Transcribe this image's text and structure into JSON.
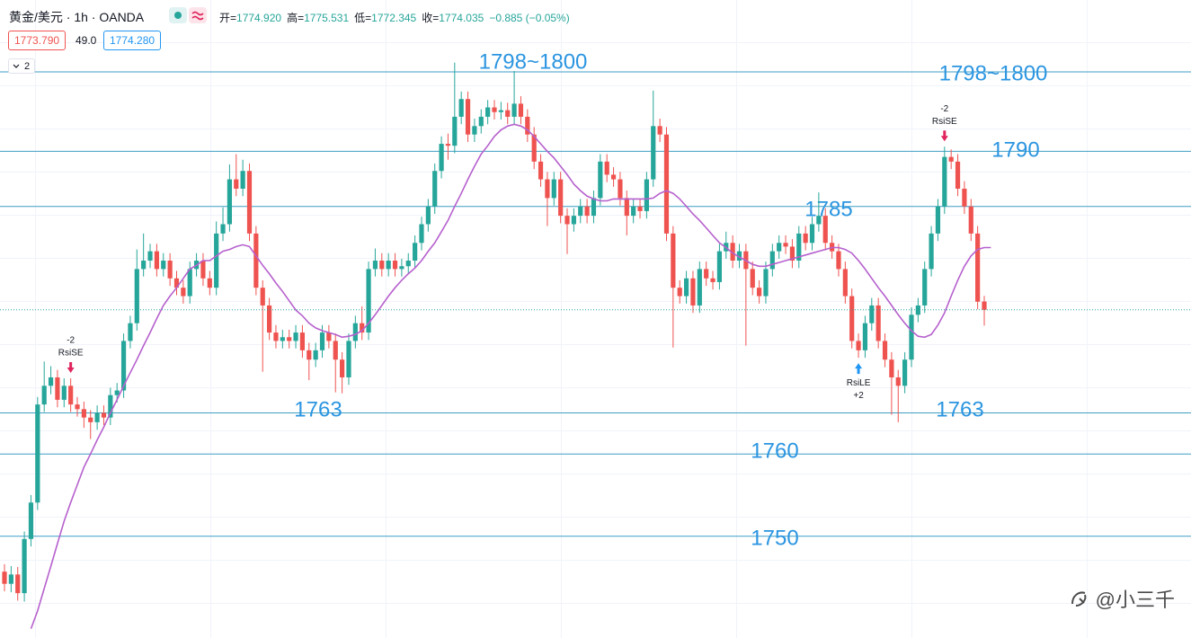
{
  "header": {
    "title": "黄金/美元 · 1h · OANDA",
    "ohlc": [
      {
        "label": "开=",
        "value": "1774.920"
      },
      {
        "label": "高=",
        "value": "1775.531"
      },
      {
        "label": "低=",
        "value": "1772.345"
      },
      {
        "label": "收=",
        "value": "1774.035"
      }
    ],
    "change": "−0.885 (−0.05%)",
    "bid": "1773.790",
    "spread": "49.0",
    "ask": "1774.280",
    "collapsed_count": "2"
  },
  "watermark": "@小三千",
  "chart_data": {
    "type": "candlestick",
    "ylim": [
      1738.9,
      1807.2
    ],
    "up_color": "#26a69a",
    "down_color": "#ef5350",
    "candles": [
      [
        1746.0,
        1746.8,
        1743.9,
        1744.7
      ],
      [
        1744.7,
        1746.6,
        1743.8,
        1745.7
      ],
      [
        1745.7,
        1746.5,
        1742.9,
        1743.7
      ],
      [
        1743.7,
        1750.3,
        1742.8,
        1749.5
      ],
      [
        1749.5,
        1754.2,
        1748.7,
        1753.4
      ],
      [
        1753.4,
        1764.7,
        1752.6,
        1763.9
      ],
      [
        1763.9,
        1768.5,
        1763.1,
        1765.9
      ],
      [
        1765.9,
        1768.0,
        1765.0,
        1766.8
      ],
      [
        1766.8,
        1767.6,
        1763.6,
        1764.4
      ],
      [
        1764.4,
        1766.7,
        1763.6,
        1765.9
      ],
      [
        1765.9,
        1766.7,
        1763.1,
        1763.9
      ],
      [
        1763.9,
        1764.7,
        1762.6,
        1763.4
      ],
      [
        1763.4,
        1764.2,
        1761.4,
        1762.5
      ],
      [
        1762.5,
        1763.3,
        1760.2,
        1762.0
      ],
      [
        1762.0,
        1763.8,
        1761.2,
        1763.0
      ],
      [
        1763.0,
        1763.8,
        1761.7,
        1762.5
      ],
      [
        1762.5,
        1765.7,
        1761.7,
        1764.9
      ],
      [
        1764.9,
        1766.2,
        1764.1,
        1765.4
      ],
      [
        1765.4,
        1771.5,
        1764.6,
        1770.7
      ],
      [
        1770.7,
        1773.4,
        1769.9,
        1772.6
      ],
      [
        1772.6,
        1780.5,
        1771.8,
        1778.4
      ],
      [
        1778.4,
        1782.2,
        1777.6,
        1779.3
      ],
      [
        1779.3,
        1781.1,
        1778.5,
        1780.3
      ],
      [
        1780.3,
        1781.1,
        1777.6,
        1778.4
      ],
      [
        1778.4,
        1780.1,
        1777.6,
        1779.3
      ],
      [
        1779.3,
        1780.1,
        1776.6,
        1777.4
      ],
      [
        1777.4,
        1778.2,
        1775.6,
        1776.4
      ],
      [
        1776.4,
        1777.2,
        1774.7,
        1775.5
      ],
      [
        1775.5,
        1779.2,
        1774.7,
        1778.4
      ],
      [
        1778.4,
        1780.1,
        1777.6,
        1779.3
      ],
      [
        1779.3,
        1780.1,
        1776.6,
        1777.4
      ],
      [
        1777.4,
        1778.2,
        1775.6,
        1776.4
      ],
      [
        1776.4,
        1783.5,
        1775.6,
        1782.2
      ],
      [
        1782.2,
        1785.0,
        1781.4,
        1783.2
      ],
      [
        1783.2,
        1789.6,
        1782.4,
        1788.0
      ],
      [
        1788.0,
        1790.7,
        1786.2,
        1787.0
      ],
      [
        1787.0,
        1790.1,
        1786.2,
        1788.9
      ],
      [
        1788.9,
        1789.7,
        1781.4,
        1782.2
      ],
      [
        1782.2,
        1783.0,
        1775.6,
        1776.4
      ],
      [
        1776.4,
        1777.2,
        1767.4,
        1774.5
      ],
      [
        1774.5,
        1775.3,
        1770.8,
        1771.6
      ],
      [
        1771.6,
        1772.4,
        1769.9,
        1770.7
      ],
      [
        1770.7,
        1771.9,
        1769.9,
        1771.1
      ],
      [
        1771.1,
        1771.9,
        1769.9,
        1770.7
      ],
      [
        1770.7,
        1772.4,
        1769.9,
        1771.6
      ],
      [
        1771.6,
        1772.4,
        1768.9,
        1769.7
      ],
      [
        1769.7,
        1770.5,
        1766.5,
        1768.7
      ],
      [
        1768.7,
        1770.5,
        1767.9,
        1769.7
      ],
      [
        1769.7,
        1772.4,
        1768.9,
        1771.6
      ],
      [
        1771.6,
        1772.4,
        1769.9,
        1770.7
      ],
      [
        1770.7,
        1771.5,
        1765.2,
        1768.7
      ],
      [
        1768.7,
        1769.5,
        1765.1,
        1766.8
      ],
      [
        1766.8,
        1771.5,
        1766.0,
        1770.7
      ],
      [
        1770.7,
        1773.4,
        1769.9,
        1772.6
      ],
      [
        1772.6,
        1774.4,
        1770.8,
        1771.6
      ],
      [
        1771.6,
        1779.2,
        1770.8,
        1778.4
      ],
      [
        1778.4,
        1780.6,
        1777.6,
        1779.3
      ],
      [
        1779.3,
        1780.1,
        1777.6,
        1778.4
      ],
      [
        1778.4,
        1780.1,
        1777.6,
        1779.3
      ],
      [
        1779.3,
        1780.1,
        1777.6,
        1778.4
      ],
      [
        1778.4,
        1779.5,
        1777.6,
        1778.7
      ],
      [
        1778.7,
        1780.1,
        1777.9,
        1779.3
      ],
      [
        1779.3,
        1782.0,
        1778.5,
        1781.2
      ],
      [
        1781.2,
        1784.0,
        1780.4,
        1783.2
      ],
      [
        1783.2,
        1785.9,
        1782.4,
        1785.1
      ],
      [
        1785.1,
        1789.7,
        1784.3,
        1788.9
      ],
      [
        1788.9,
        1792.6,
        1788.1,
        1791.8
      ],
      [
        1791.8,
        1792.9,
        1790.1,
        1791.6
      ],
      [
        1791.6,
        1800.5,
        1790.8,
        1794.7
      ],
      [
        1794.7,
        1797.4,
        1793.9,
        1796.6
      ],
      [
        1796.6,
        1797.4,
        1792.0,
        1792.8
      ],
      [
        1792.8,
        1794.5,
        1792.0,
        1793.7
      ],
      [
        1793.7,
        1795.5,
        1792.9,
        1794.7
      ],
      [
        1794.7,
        1796.5,
        1793.9,
        1795.7
      ],
      [
        1795.7,
        1796.5,
        1794.4,
        1795.2
      ],
      [
        1795.2,
        1796.3,
        1794.4,
        1795.4
      ],
      [
        1795.4,
        1796.2,
        1793.9,
        1794.7
      ],
      [
        1794.7,
        1799.6,
        1793.9,
        1796.1
      ],
      [
        1796.1,
        1796.9,
        1793.9,
        1794.7
      ],
      [
        1794.7,
        1795.5,
        1792.0,
        1792.8
      ],
      [
        1792.8,
        1793.6,
        1789.1,
        1789.9
      ],
      [
        1789.9,
        1790.7,
        1787.2,
        1788.0
      ],
      [
        1788.0,
        1788.8,
        1783.0,
        1786.0
      ],
      [
        1786.0,
        1788.8,
        1785.2,
        1788.0
      ],
      [
        1788.0,
        1788.8,
        1783.3,
        1784.1
      ],
      [
        1784.1,
        1784.9,
        1780.0,
        1783.2
      ],
      [
        1783.2,
        1784.9,
        1782.4,
        1784.1
      ],
      [
        1784.1,
        1785.9,
        1783.3,
        1785.1
      ],
      [
        1785.1,
        1785.9,
        1783.3,
        1784.1
      ],
      [
        1784.1,
        1786.8,
        1783.3,
        1786.0
      ],
      [
        1786.0,
        1790.7,
        1785.2,
        1789.9
      ],
      [
        1789.9,
        1790.7,
        1787.7,
        1788.5
      ],
      [
        1788.5,
        1789.3,
        1787.2,
        1788.0
      ],
      [
        1788.0,
        1788.8,
        1785.2,
        1786.0
      ],
      [
        1786.0,
        1786.8,
        1782.0,
        1784.1
      ],
      [
        1784.1,
        1785.9,
        1783.3,
        1785.1
      ],
      [
        1785.1,
        1785.9,
        1783.8,
        1784.6
      ],
      [
        1784.6,
        1788.8,
        1783.8,
        1788.0
      ],
      [
        1788.0,
        1797.5,
        1787.2,
        1793.7
      ],
      [
        1793.7,
        1794.5,
        1792.0,
        1792.8
      ],
      [
        1792.8,
        1793.6,
        1781.4,
        1782.2
      ],
      [
        1782.2,
        1783.0,
        1770.0,
        1776.4
      ],
      [
        1776.4,
        1777.2,
        1774.7,
        1775.5
      ],
      [
        1775.5,
        1778.2,
        1774.7,
        1777.4
      ],
      [
        1777.4,
        1778.2,
        1773.7,
        1774.5
      ],
      [
        1774.5,
        1779.2,
        1773.7,
        1778.4
      ],
      [
        1778.4,
        1779.2,
        1776.6,
        1777.4
      ],
      [
        1777.4,
        1778.2,
        1776.2,
        1777.0
      ],
      [
        1777.0,
        1781.1,
        1776.2,
        1780.3
      ],
      [
        1780.3,
        1782.4,
        1779.5,
        1781.2
      ],
      [
        1781.2,
        1782.0,
        1778.5,
        1779.3
      ],
      [
        1779.3,
        1781.1,
        1778.5,
        1780.3
      ],
      [
        1780.3,
        1781.1,
        1770.2,
        1778.4
      ],
      [
        1778.4,
        1779.2,
        1775.6,
        1776.4
      ],
      [
        1776.4,
        1777.2,
        1774.7,
        1775.5
      ],
      [
        1775.5,
        1779.2,
        1774.7,
        1778.4
      ],
      [
        1778.4,
        1781.1,
        1777.6,
        1780.3
      ],
      [
        1780.3,
        1782.0,
        1779.5,
        1781.2
      ],
      [
        1781.2,
        1782.0,
        1780.0,
        1780.8
      ],
      [
        1780.8,
        1781.6,
        1778.5,
        1779.3
      ],
      [
        1779.3,
        1783.0,
        1778.5,
        1782.2
      ],
      [
        1782.2,
        1783.0,
        1780.4,
        1781.2
      ],
      [
        1781.2,
        1784.0,
        1780.4,
        1783.2
      ],
      [
        1783.2,
        1786.6,
        1782.4,
        1784.1
      ],
      [
        1784.1,
        1784.9,
        1780.4,
        1781.2
      ],
      [
        1781.2,
        1782.0,
        1779.5,
        1780.3
      ],
      [
        1780.3,
        1781.1,
        1777.6,
        1778.4
      ],
      [
        1778.4,
        1779.2,
        1774.7,
        1775.5
      ],
      [
        1775.5,
        1776.3,
        1769.9,
        1770.7
      ],
      [
        1770.7,
        1771.5,
        1768.9,
        1769.7
      ],
      [
        1769.7,
        1773.4,
        1768.9,
        1772.6
      ],
      [
        1772.6,
        1775.3,
        1771.8,
        1774.5
      ],
      [
        1774.5,
        1775.3,
        1769.9,
        1770.7
      ],
      [
        1770.7,
        1771.5,
        1767.9,
        1768.7
      ],
      [
        1768.7,
        1769.5,
        1762.8,
        1766.8
      ],
      [
        1766.8,
        1767.6,
        1762.0,
        1765.9
      ],
      [
        1765.9,
        1769.5,
        1765.1,
        1768.7
      ],
      [
        1768.7,
        1774.3,
        1767.9,
        1773.5
      ],
      [
        1773.5,
        1775.3,
        1772.7,
        1774.5
      ],
      [
        1774.5,
        1779.2,
        1773.7,
        1778.4
      ],
      [
        1778.4,
        1783.0,
        1777.6,
        1782.2
      ],
      [
        1782.2,
        1785.9,
        1781.4,
        1785.1
      ],
      [
        1785.1,
        1791.5,
        1784.3,
        1790.4
      ],
      [
        1790.4,
        1791.2,
        1789.1,
        1789.9
      ],
      [
        1789.9,
        1790.7,
        1786.2,
        1787.0
      ],
      [
        1787.0,
        1787.8,
        1784.3,
        1785.1
      ],
      [
        1785.1,
        1785.9,
        1781.4,
        1782.2
      ],
      [
        1782.2,
        1783.0,
        1774.1,
        1774.9
      ],
      [
        1774.92,
        1775.531,
        1772.345,
        1774.035
      ]
    ],
    "ma": {
      "color": "#b660cd",
      "values": [
        null,
        null,
        null,
        null,
        1739.9,
        1741.8,
        1744.2,
        1746.6,
        1749.0,
        1751.4,
        1753.4,
        1755.3,
        1757.2,
        1758.6,
        1760.1,
        1761.5,
        1763.0,
        1764.4,
        1765.9,
        1767.3,
        1768.7,
        1770.2,
        1771.6,
        1773.1,
        1774.5,
        1775.5,
        1776.4,
        1777.4,
        1778.4,
        1778.8,
        1779.3,
        1779.3,
        1779.8,
        1780.3,
        1780.5,
        1780.8,
        1781.0,
        1780.8,
        1779.8,
        1778.8,
        1777.9,
        1776.9,
        1776.0,
        1775.0,
        1774.0,
        1773.4,
        1772.6,
        1772.1,
        1771.8,
        1771.6,
        1771.4,
        1771.1,
        1771.2,
        1771.4,
        1771.8,
        1772.6,
        1773.5,
        1774.5,
        1775.5,
        1776.4,
        1777.2,
        1777.9,
        1778.5,
        1779.3,
        1780.3,
        1781.2,
        1782.4,
        1783.6,
        1785.1,
        1786.5,
        1788.0,
        1789.4,
        1790.7,
        1791.6,
        1792.6,
        1793.3,
        1793.7,
        1793.9,
        1793.7,
        1793.3,
        1792.6,
        1791.8,
        1791.0,
        1790.3,
        1789.4,
        1788.5,
        1787.5,
        1786.8,
        1786.2,
        1785.9,
        1785.7,
        1785.7,
        1785.9,
        1785.9,
        1785.9,
        1785.9,
        1785.9,
        1785.9,
        1786.0,
        1786.5,
        1786.8,
        1786.5,
        1785.9,
        1785.1,
        1784.3,
        1783.6,
        1782.8,
        1782.0,
        1781.2,
        1780.7,
        1780.1,
        1779.7,
        1779.3,
        1778.9,
        1778.7,
        1778.7,
        1778.9,
        1779.1,
        1779.3,
        1779.5,
        1779.7,
        1779.9,
        1780.1,
        1780.3,
        1780.5,
        1780.7,
        1780.7,
        1780.5,
        1780.1,
        1779.3,
        1778.4,
        1777.4,
        1776.4,
        1775.5,
        1774.5,
        1773.5,
        1772.6,
        1771.8,
        1771.2,
        1771.1,
        1771.4,
        1772.4,
        1773.7,
        1775.5,
        1777.2,
        1778.7,
        1779.8,
        1780.5,
        1780.7,
        1780.7
      ]
    },
    "price_line_color": "#26a69a",
    "level_color": "#3f9ec4",
    "level_label_color": "#2b95e0",
    "levels": [
      {
        "price": 1799.5,
        "labels": [
          "1798~1800",
          "1798~1800"
        ]
      },
      {
        "price": 1791.0,
        "labels": [
          "1790"
        ]
      },
      {
        "price": 1785.1,
        "labels": [
          "1785"
        ]
      },
      {
        "price": 1763.0,
        "labels": [
          "1763",
          "1763"
        ]
      },
      {
        "price": 1758.6,
        "labels": [
          "1760"
        ]
      },
      {
        "price": 1749.8,
        "labels": [
          "1750"
        ]
      }
    ],
    "signals": [
      {
        "index": 10,
        "side": "short",
        "qty": "-2",
        "name": "RsiSE",
        "color": "#e0245e"
      },
      {
        "index": 129,
        "side": "long",
        "qty": "+2",
        "name": "RsiLE",
        "color": "#2196f3"
      },
      {
        "index": 142,
        "side": "short",
        "qty": "-2",
        "name": "RsiSE",
        "color": "#e0245e"
      }
    ]
  }
}
